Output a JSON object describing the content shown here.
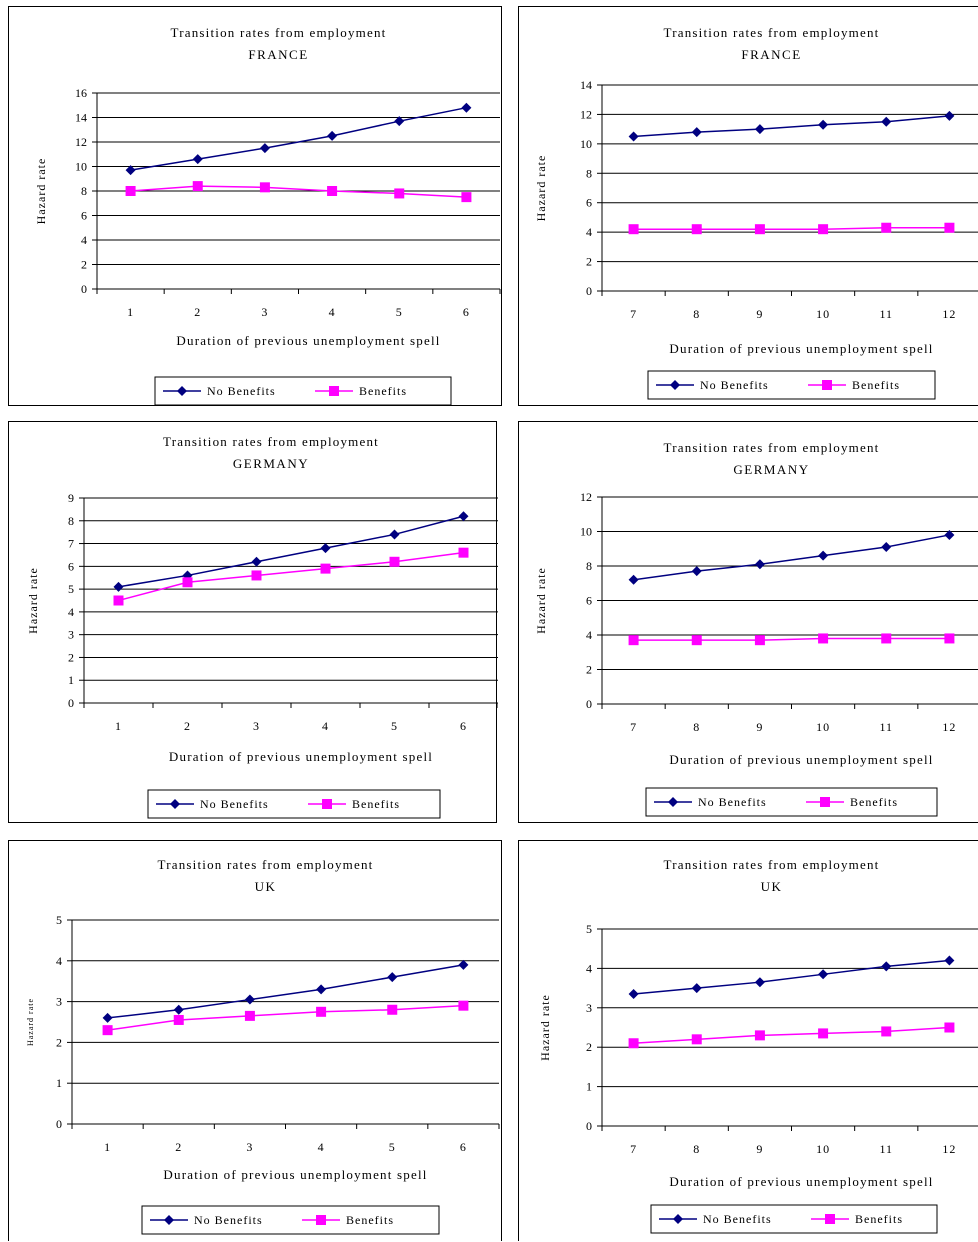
{
  "legend": {
    "series_a": "No Benefits",
    "series_b": "Benefits"
  },
  "colors": {
    "series_a": "#000080",
    "series_b": "#ff00ff",
    "grid": "#000000",
    "border": "#000000"
  },
  "chart_data": [
    {
      "type": "line",
      "title": "Transition rates from employment",
      "subtitle": "FRANCE",
      "xlabel": "Duration of previous unemployment spell",
      "ylabel": "Hazard rate",
      "categories": [
        "1",
        "2",
        "3",
        "4",
        "5",
        "6"
      ],
      "ylim": [
        0,
        16
      ],
      "yticks": [
        0,
        2,
        4,
        6,
        8,
        10,
        12,
        14,
        16
      ],
      "grid": true,
      "legend_position": "bottom",
      "series": [
        {
          "name": "No Benefits",
          "marker": "diamond",
          "values": [
            9.7,
            10.6,
            11.5,
            12.5,
            13.7,
            14.8
          ]
        },
        {
          "name": "Benefits",
          "marker": "square",
          "values": [
            8.0,
            8.4,
            8.3,
            8.0,
            7.8,
            7.5
          ]
        }
      ]
    },
    {
      "type": "line",
      "title": "Transition rates from employment",
      "subtitle": "FRANCE",
      "xlabel": "Duration of previous unemployment spell",
      "ylabel": "Hazard rate",
      "categories": [
        "7",
        "8",
        "9",
        "10",
        "11",
        "12"
      ],
      "ylim": [
        0,
        14
      ],
      "yticks": [
        0,
        2,
        4,
        6,
        8,
        10,
        12,
        14
      ],
      "grid": true,
      "legend_position": "bottom",
      "series": [
        {
          "name": "No Benefits",
          "marker": "diamond",
          "values": [
            10.5,
            10.8,
            11.0,
            11.3,
            11.5,
            11.9
          ]
        },
        {
          "name": "Benefits",
          "marker": "square",
          "values": [
            4.2,
            4.2,
            4.2,
            4.2,
            4.3,
            4.3
          ]
        }
      ]
    },
    {
      "type": "line",
      "title": "Transition rates from employment",
      "subtitle": "GERMANY",
      "xlabel": "Duration of previous unemployment spell",
      "ylabel": "Hazard rate",
      "categories": [
        "1",
        "2",
        "3",
        "4",
        "5",
        "6"
      ],
      "ylim": [
        0,
        9
      ],
      "yticks": [
        0,
        1,
        2,
        3,
        4,
        5,
        6,
        7,
        8,
        9
      ],
      "grid": true,
      "legend_position": "bottom",
      "series": [
        {
          "name": "No Benefits",
          "marker": "diamond",
          "values": [
            5.1,
            5.6,
            6.2,
            6.8,
            7.4,
            8.2
          ]
        },
        {
          "name": "Benefits",
          "marker": "square",
          "values": [
            4.5,
            5.3,
            5.6,
            5.9,
            6.2,
            6.6
          ]
        }
      ]
    },
    {
      "type": "line",
      "title": "Transition rates from employment",
      "subtitle": "GERMANY",
      "xlabel": "Duration of previous unemployment spell",
      "ylabel": "Hazard rate",
      "categories": [
        "7",
        "8",
        "9",
        "10",
        "11",
        "12"
      ],
      "ylim": [
        0,
        12
      ],
      "yticks": [
        0,
        2,
        4,
        6,
        8,
        10,
        12
      ],
      "grid": true,
      "legend_position": "bottom",
      "series": [
        {
          "name": "No Benefits",
          "marker": "diamond",
          "values": [
            7.2,
            7.7,
            8.1,
            8.6,
            9.1,
            9.8
          ]
        },
        {
          "name": "Benefits",
          "marker": "square",
          "values": [
            3.7,
            3.7,
            3.7,
            3.8,
            3.8,
            3.8
          ]
        }
      ]
    },
    {
      "type": "line",
      "title": "Transition rates from employment",
      "subtitle": "UK",
      "xlabel": "Duration of previous unemployment spell",
      "ylabel": "Hazard rate",
      "categories": [
        "1",
        "2",
        "3",
        "4",
        "5",
        "6"
      ],
      "ylim": [
        0,
        5
      ],
      "yticks": [
        0,
        1,
        2,
        3,
        4,
        5
      ],
      "grid": true,
      "legend_position": "bottom",
      "series": [
        {
          "name": "No Benefits",
          "marker": "diamond",
          "values": [
            2.6,
            2.8,
            3.05,
            3.3,
            3.6,
            3.9
          ]
        },
        {
          "name": "Benefits",
          "marker": "square",
          "values": [
            2.3,
            2.55,
            2.65,
            2.75,
            2.8,
            2.9
          ]
        }
      ]
    },
    {
      "type": "line",
      "title": "Transition rates from employment",
      "subtitle": "UK",
      "xlabel": "Duration of previous unemployment spell",
      "ylabel": "Hazard rate",
      "categories": [
        "7",
        "8",
        "9",
        "10",
        "11",
        "12"
      ],
      "ylim": [
        0,
        5
      ],
      "yticks": [
        0,
        1,
        2,
        3,
        4,
        5
      ],
      "grid": true,
      "legend_position": "bottom",
      "series": [
        {
          "name": "No Benefits",
          "marker": "diamond",
          "values": [
            3.35,
            3.5,
            3.65,
            3.85,
            4.05,
            4.2
          ]
        },
        {
          "name": "Benefits",
          "marker": "square",
          "values": [
            2.1,
            2.2,
            2.3,
            2.35,
            2.4,
            2.5
          ]
        }
      ]
    }
  ]
}
